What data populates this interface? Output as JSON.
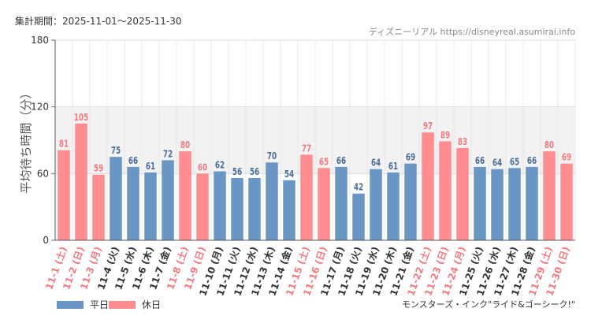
{
  "period_label": "集計期間：2025-11-01～2025-11-30",
  "credit": "ディズニーリアル https://disneyreal.asumirai.info",
  "attraction": "モンスターズ・インク\"ライド&ゴーシーク!\"",
  "legend": {
    "weekday": "平日",
    "holiday": "休日"
  },
  "colors": {
    "weekday": "#6a96c5",
    "holiday": "#ff8c8f",
    "weekday_label": "#4a6f98",
    "holiday_label": "#f47a80",
    "band": "#f2f2f2"
  },
  "chart_data": {
    "type": "bar",
    "ylabel": "平均待ち時間（分）",
    "ylim": [
      0,
      180
    ],
    "yticks": [
      0,
      60,
      120,
      180
    ],
    "shaded_band": [
      60,
      120
    ],
    "categories": [
      "11-1 (土)",
      "11-2 (日)",
      "11-3 (月)",
      "11-4 (火)",
      "11-5 (水)",
      "11-6 (木)",
      "11-7 (金)",
      "11-8 (土)",
      "11-9 (日)",
      "11-10 (月)",
      "11-11 (火)",
      "11-12 (水)",
      "11-13 (木)",
      "11-14 (金)",
      "11-15 (土)",
      "11-16 (日)",
      "11-17 (月)",
      "11-18 (火)",
      "11-19 (水)",
      "11-20 (木)",
      "11-21 (金)",
      "11-22 (土)",
      "11-23 (日)",
      "11-24 (月)",
      "11-25 (火)",
      "11-26 (水)",
      "11-27 (木)",
      "11-28 (金)",
      "11-29 (土)",
      "11-30 (日)"
    ],
    "values": [
      81,
      105,
      59,
      75,
      66,
      61,
      72,
      80,
      60,
      62,
      56,
      56,
      70,
      54,
      77,
      65,
      66,
      42,
      64,
      61,
      69,
      97,
      89,
      83,
      66,
      64,
      65,
      66,
      80,
      69
    ],
    "day_type": [
      "holiday",
      "holiday",
      "holiday",
      "weekday",
      "weekday",
      "weekday",
      "weekday",
      "holiday",
      "holiday",
      "weekday",
      "weekday",
      "weekday",
      "weekday",
      "weekday",
      "holiday",
      "holiday",
      "weekday",
      "weekday",
      "weekday",
      "weekday",
      "weekday",
      "holiday",
      "holiday",
      "holiday",
      "weekday",
      "weekday",
      "weekday",
      "weekday",
      "holiday",
      "holiday"
    ]
  }
}
